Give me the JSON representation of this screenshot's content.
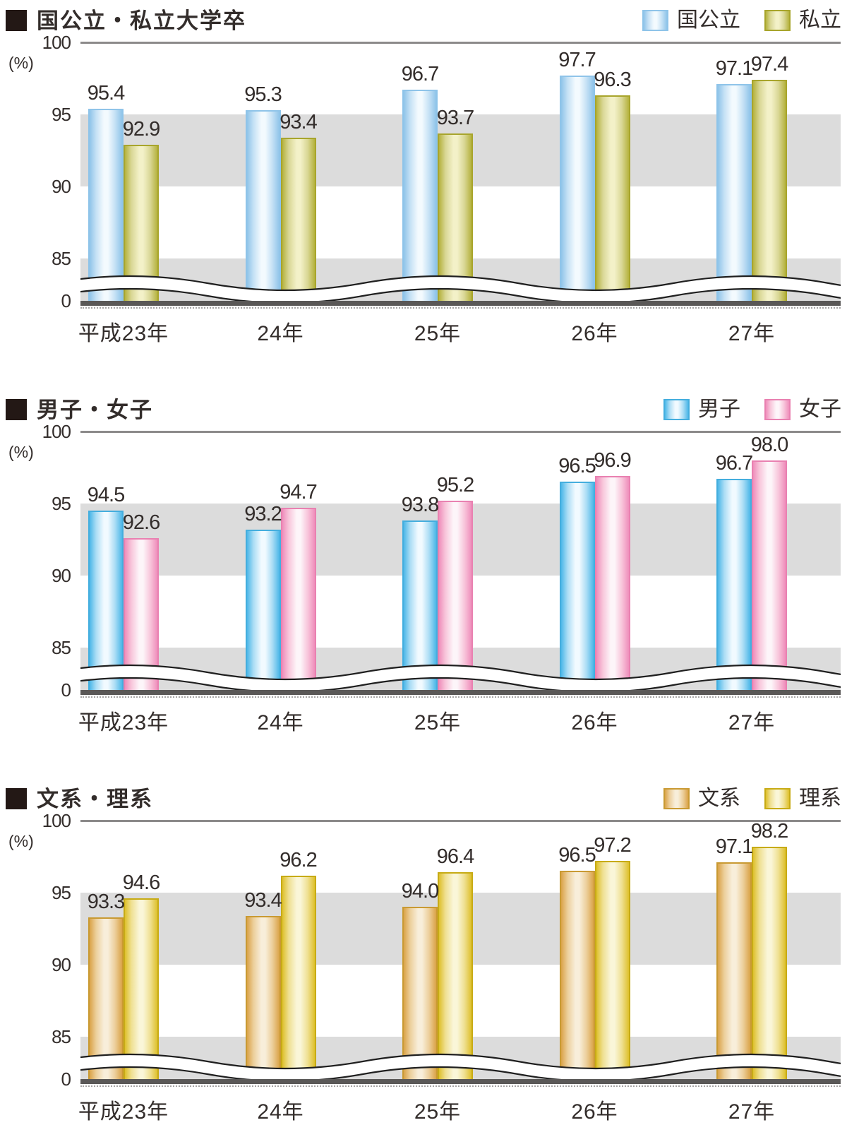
{
  "styles": {
    "band_color": "#dcdcdc",
    "baseline_color": "#5a5857",
    "top_line_color": "#8c8a8a",
    "text_color": "#332d2b",
    "title_bullet_color": "#231815",
    "wave_line_color": "#1f1f1f",
    "wave_fill_color": "#ffffff"
  },
  "chart_data": [
    {
      "type": "bar",
      "title": "国公立・私立大学卒",
      "unit_label": "(%)",
      "categories": [
        "平成23年",
        "24年",
        "25年",
        "26年",
        "27年"
      ],
      "series": [
        {
          "name": "国公立",
          "values": [
            95.4,
            95.3,
            96.7,
            97.7,
            97.1
          ],
          "labels": [
            "95.4",
            "95.3",
            "96.7",
            "97.7",
            "97.1"
          ],
          "colors": {
            "edge": "#8fc4e9",
            "inner": "#c5e1f5",
            "mid": "#f3fafe",
            "border": "#8fc4e9"
          }
        },
        {
          "name": "私立",
          "values": [
            92.9,
            93.4,
            93.7,
            96.3,
            97.4
          ],
          "labels": [
            "92.9",
            "93.4",
            "93.7",
            "96.3",
            "97.4"
          ],
          "colors": {
            "edge": "#b5b23e",
            "inner": "#d9d795",
            "mid": "#f3f1c8",
            "border": "#a8a52c"
          }
        }
      ],
      "yticks": [
        "100",
        "95",
        "90",
        "85",
        "0"
      ],
      "ylim_display": [
        85,
        100
      ],
      "axis_break": true,
      "grid_bands": [
        [
          95,
          90
        ],
        [
          85,
          0
        ]
      ],
      "legend_position": "top-right"
    },
    {
      "type": "bar",
      "title": "男子・女子",
      "unit_label": "(%)",
      "categories": [
        "平成23年",
        "24年",
        "25年",
        "26年",
        "27年"
      ],
      "series": [
        {
          "name": "男子",
          "values": [
            94.5,
            93.2,
            93.8,
            96.5,
            96.7
          ],
          "labels": [
            "94.5",
            "93.2",
            "93.8",
            "96.5",
            "96.7"
          ],
          "colors": {
            "edge": "#4cb7e8",
            "inner": "#abddf5",
            "mid": "#f1faff",
            "border": "#44aede"
          }
        },
        {
          "name": "女子",
          "values": [
            92.6,
            94.7,
            95.2,
            96.9,
            98.0
          ],
          "labels": [
            "92.6",
            "94.7",
            "95.2",
            "96.9",
            "98.0"
          ],
          "colors": {
            "edge": "#ef8ebb",
            "inner": "#f8c6db",
            "mid": "#fdf5f9",
            "border": "#e981b1"
          }
        }
      ],
      "yticks": [
        "100",
        "95",
        "90",
        "85",
        "0"
      ],
      "ylim_display": [
        85,
        100
      ],
      "axis_break": true,
      "grid_bands": [
        [
          95,
          90
        ],
        [
          85,
          0
        ]
      ],
      "legend_position": "top-right"
    },
    {
      "type": "bar",
      "title": "文系・理系",
      "unit_label": "(%)",
      "categories": [
        "平成23年",
        "24年",
        "25年",
        "26年",
        "27年"
      ],
      "series": [
        {
          "name": "文系",
          "values": [
            93.3,
            93.4,
            94.0,
            96.5,
            97.1
          ],
          "labels": [
            "93.3",
            "93.4",
            "94.0",
            "96.5",
            "97.1"
          ],
          "colors": {
            "edge": "#daa348",
            "inner": "#eccf9b",
            "mid": "#f8eeda",
            "border": "#c99a33"
          }
        },
        {
          "name": "理系",
          "values": [
            94.6,
            96.2,
            96.4,
            97.2,
            98.2
          ],
          "labels": [
            "94.6",
            "96.2",
            "96.4",
            "97.2",
            "98.2"
          ],
          "colors": {
            "edge": "#dec02c",
            "inner": "#efe092",
            "mid": "#faf6d8",
            "border": "#c7ab15"
          }
        }
      ],
      "yticks": [
        "100",
        "95",
        "90",
        "85",
        "0"
      ],
      "ylim_display": [
        85,
        100
      ],
      "axis_break": true,
      "grid_bands": [
        [
          95,
          90
        ],
        [
          85,
          0
        ]
      ],
      "legend_position": "top-right"
    }
  ]
}
